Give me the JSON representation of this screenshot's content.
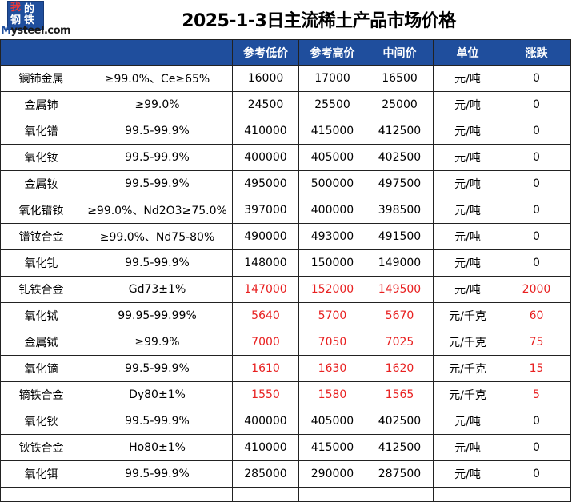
{
  "logo": {
    "glyph1": "我",
    "glyph2": "的",
    "glyph3": "钢",
    "glyph4": "铁",
    "text_m": "M",
    "text_rest": "ysteel.com"
  },
  "title": "2025-1-3日主流稀土产品市场价格",
  "columns": [
    "",
    "",
    "参考低价",
    "参考高价",
    "中间价",
    "单位",
    "涨跌"
  ],
  "rows": [
    {
      "name": "镧铈金属",
      "spec": "≥99.0%、Ce≥65%",
      "low": "16000",
      "high": "17000",
      "mid": "16500",
      "unit": "元/吨",
      "change": "0",
      "highlight": false
    },
    {
      "name": "金属铈",
      "spec": "≥99.0%",
      "low": "24500",
      "high": "25500",
      "mid": "25000",
      "unit": "元/吨",
      "change": "0",
      "highlight": false
    },
    {
      "name": "氧化镨",
      "spec": "99.5-99.9%",
      "low": "410000",
      "high": "415000",
      "mid": "412500",
      "unit": "元/吨",
      "change": "0",
      "highlight": false
    },
    {
      "name": "氧化钕",
      "spec": "99.5-99.9%",
      "low": "400000",
      "high": "405000",
      "mid": "402500",
      "unit": "元/吨",
      "change": "0",
      "highlight": false
    },
    {
      "name": "金属钕",
      "spec": "99.5-99.9%",
      "low": "495000",
      "high": "500000",
      "mid": "497500",
      "unit": "元/吨",
      "change": "0",
      "highlight": false
    },
    {
      "name": "氧化镨钕",
      "spec": "≥99.0%、Nd2O3≥75.0%",
      "low": "397000",
      "high": "400000",
      "mid": "398500",
      "unit": "元/吨",
      "change": "0",
      "highlight": false
    },
    {
      "name": "镨钕合金",
      "spec": "≥99.0%、Nd75-80%",
      "low": "490000",
      "high": "493000",
      "mid": "491500",
      "unit": "元/吨",
      "change": "0",
      "highlight": false
    },
    {
      "name": "氧化钆",
      "spec": "99.5-99.9%",
      "low": "148000",
      "high": "150000",
      "mid": "149000",
      "unit": "元/吨",
      "change": "0",
      "highlight": false
    },
    {
      "name": "钆铁合金",
      "spec": "Gd73±1%",
      "low": "147000",
      "high": "152000",
      "mid": "149500",
      "unit": "元/吨",
      "change": "2000",
      "highlight": true
    },
    {
      "name": "氧化铽",
      "spec": "99.95-99.99%",
      "low": "5640",
      "high": "5700",
      "mid": "5670",
      "unit": "元/千克",
      "change": "60",
      "highlight": true
    },
    {
      "name": "金属铽",
      "spec": "≥99.9%",
      "low": "7000",
      "high": "7050",
      "mid": "7025",
      "unit": "元/千克",
      "change": "75",
      "highlight": true
    },
    {
      "name": "氧化镝",
      "spec": "99.5-99.9%",
      "low": "1610",
      "high": "1630",
      "mid": "1620",
      "unit": "元/千克",
      "change": "15",
      "highlight": true
    },
    {
      "name": "镝铁合金",
      "spec": "Dy80±1%",
      "low": "1550",
      "high": "1580",
      "mid": "1565",
      "unit": "元/千克",
      "change": "5",
      "highlight": true
    },
    {
      "name": "氧化钬",
      "spec": "99.5-99.9%",
      "low": "400000",
      "high": "405000",
      "mid": "402500",
      "unit": "元/吨",
      "change": "0",
      "highlight": false
    },
    {
      "name": "钬铁合金",
      "spec": "Ho80±1%",
      "low": "410000",
      "high": "415000",
      "mid": "412500",
      "unit": "元/吨",
      "change": "0",
      "highlight": false
    },
    {
      "name": "氧化铒",
      "spec": "99.5-99.9%",
      "low": "285000",
      "high": "290000",
      "mid": "287500",
      "unit": "元/吨",
      "change": "0",
      "highlight": false
    }
  ],
  "colors": {
    "header_bg": "#1f4e9d",
    "highlight_text": "#e82020"
  }
}
